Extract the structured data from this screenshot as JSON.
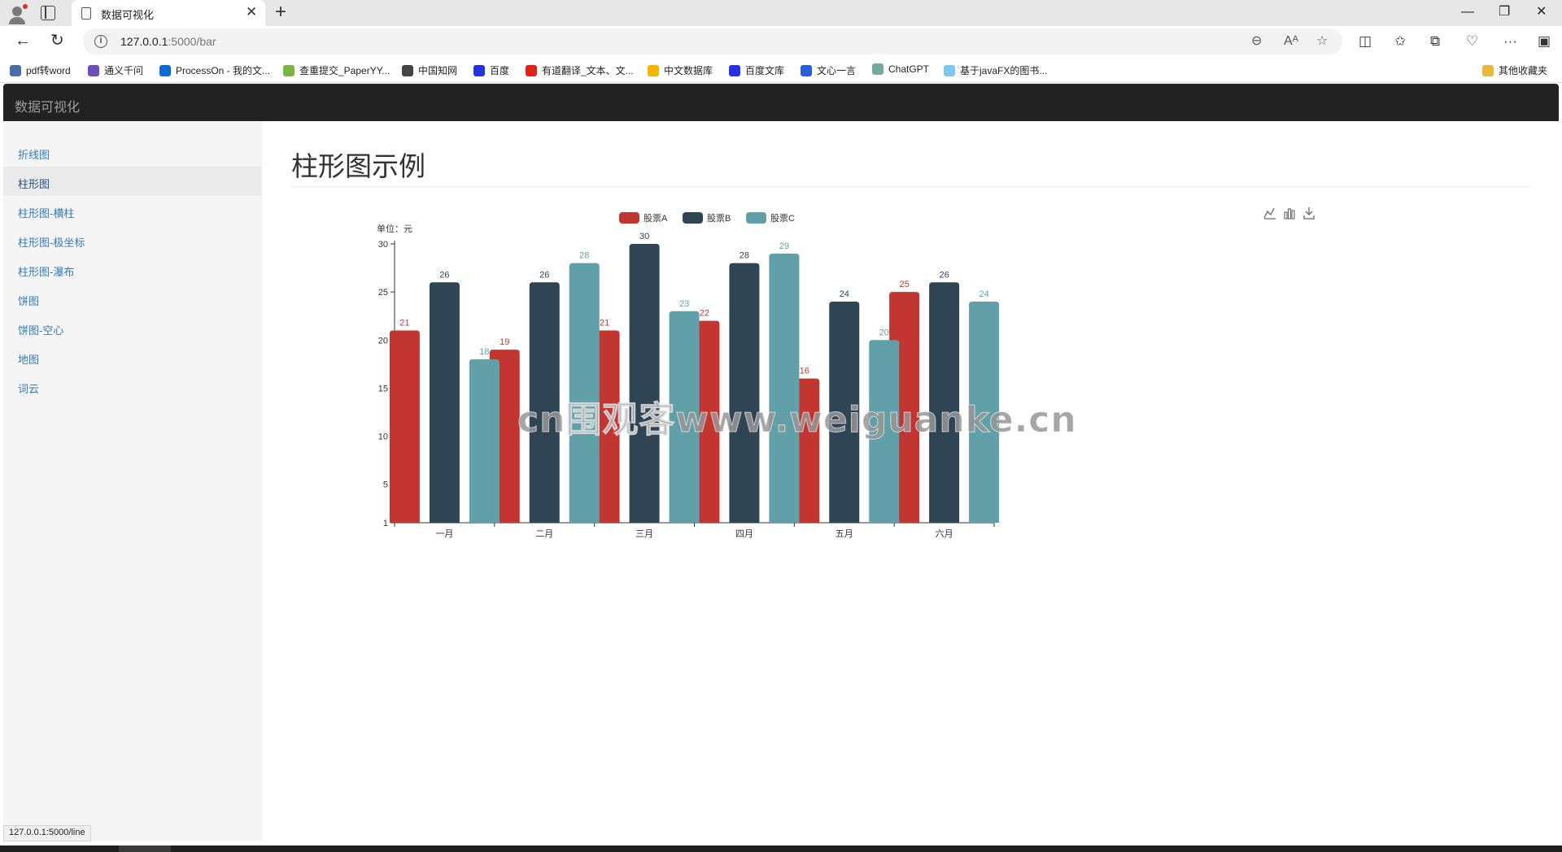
{
  "browser": {
    "tab_title": "数据可视化",
    "tab_close": "✕",
    "new_tab": "+",
    "url_host": "127.0.0.1",
    "url_rest": ":5000/bar",
    "window_controls": {
      "minimize": "—",
      "restore": "❐",
      "close": "✕"
    },
    "bookmarks": [
      {
        "label": "pdf转word",
        "color": "#4a6fa5"
      },
      {
        "label": "通义千问",
        "color": "#6b4fbb"
      },
      {
        "label": "ProcessOn - 我的文...",
        "color": "#0b6bd3"
      },
      {
        "label": "查重提交_PaperYY...",
        "color": "#7cb342"
      },
      {
        "label": "中国知网",
        "color": "#444444"
      },
      {
        "label": "百度",
        "color": "#2932e1"
      },
      {
        "label": "有道翻译_文本、文...",
        "color": "#e0231b"
      },
      {
        "label": "中文数据库",
        "color": "#f5b400"
      },
      {
        "label": "百度文库",
        "color": "#2932e1"
      },
      {
        "label": "文心一言",
        "color": "#2b5fd9"
      },
      {
        "label": "ChatGPT",
        "color": "#74aa9c"
      },
      {
        "label": "基于javaFX的图书...",
        "color": "#7ec8f0"
      }
    ],
    "other_bookmarks": "其他收藏夹",
    "status_url": "127.0.0.1:5000/line"
  },
  "page": {
    "brand": "数据可视化",
    "title": "柱形图示例",
    "watermark": "cn围观客www.weiguanke.cn",
    "sidebar": [
      {
        "label": "折线图",
        "active": false
      },
      {
        "label": "柱形图",
        "active": true
      },
      {
        "label": "柱形图-横柱",
        "active": false
      },
      {
        "label": "柱形图-极坐标",
        "active": false
      },
      {
        "label": "柱形图-瀑布",
        "active": false
      },
      {
        "label": "饼图",
        "active": false
      },
      {
        "label": "饼图-空心",
        "active": false
      },
      {
        "label": "地图",
        "active": false
      },
      {
        "label": "词云",
        "active": false
      }
    ]
  },
  "chart_data": {
    "type": "bar",
    "unit_label": "单位：元",
    "categories": [
      "一月",
      "二月",
      "三月",
      "四月",
      "五月",
      "六月"
    ],
    "series": [
      {
        "name": "股票A",
        "color": "#c23531",
        "values": [
          21,
          19,
          21,
          22,
          16,
          25
        ]
      },
      {
        "name": "股票B",
        "color": "#2f4554",
        "values": [
          26,
          26,
          30,
          28,
          24,
          26
        ]
      },
      {
        "name": "股票C",
        "color": "#61a0a8",
        "values": [
          18,
          28,
          23,
          29,
          20,
          24
        ]
      }
    ],
    "y_ticks": [
      1,
      5,
      10,
      15,
      20,
      25,
      30
    ],
    "ylim": [
      1,
      30
    ],
    "legend_position": "top-center",
    "grid": false,
    "toolbox": [
      "line-chart-icon",
      "bar-chart-icon",
      "download-icon"
    ]
  }
}
